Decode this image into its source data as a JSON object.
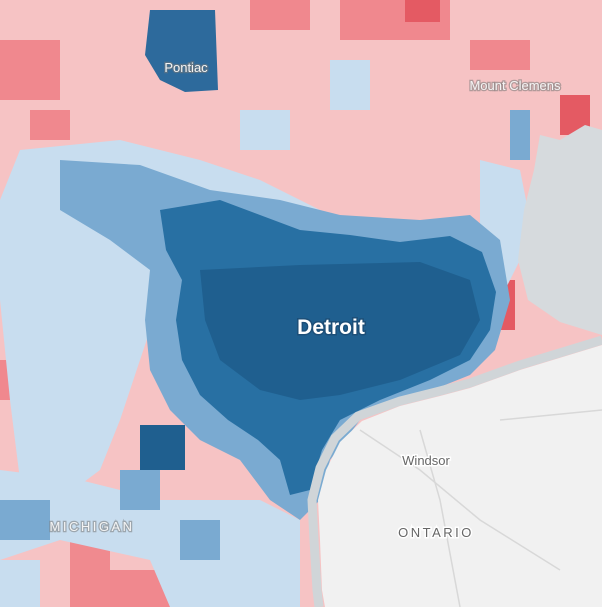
{
  "places": [
    {
      "label": "Pontiac"
    },
    {
      "label": "Mount Clemens"
    },
    {
      "label": "Detroit"
    },
    {
      "label": "Windsor"
    },
    {
      "label": "MICHIGAN"
    },
    {
      "label": "ONTARIO"
    }
  ]
}
